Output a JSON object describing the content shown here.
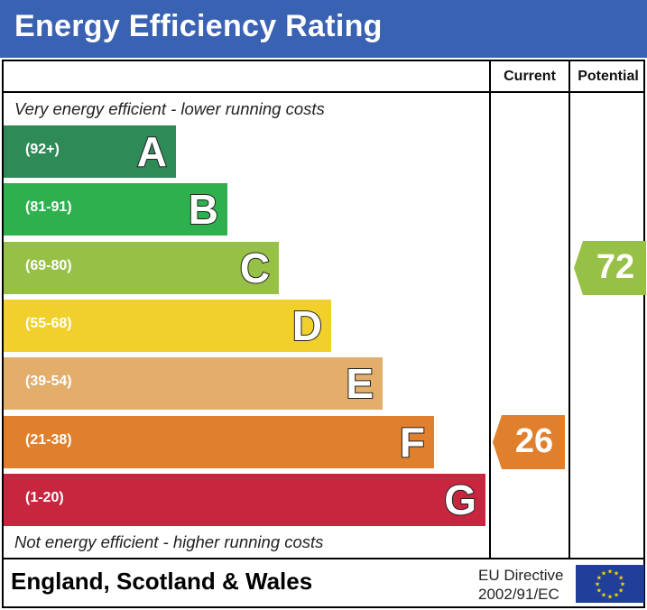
{
  "header": {
    "title": "Energy Efficiency Rating"
  },
  "columns": {
    "current": "Current",
    "potential": "Potential"
  },
  "notes": {
    "top": "Very energy efficient - lower running costs",
    "bottom": "Not energy efficient - higher running costs"
  },
  "chart_data": {
    "type": "bar",
    "bands": [
      {
        "letter": "A",
        "range": "(92+)",
        "color": "#2e8b57"
      },
      {
        "letter": "B",
        "range": "(81-91)",
        "color": "#2fb04e"
      },
      {
        "letter": "C",
        "range": "(69-80)",
        "color": "#97c146"
      },
      {
        "letter": "D",
        "range": "(55-68)",
        "color": "#f1d02c"
      },
      {
        "letter": "E",
        "range": "(39-54)",
        "color": "#e3ad6a"
      },
      {
        "letter": "F",
        "range": "(21-38)",
        "color": "#e07f2c"
      },
      {
        "letter": "G",
        "range": "(1-20)",
        "color": "#c8253f"
      }
    ],
    "current": {
      "value": "26",
      "band": "F",
      "color": "#e07f2c"
    },
    "potential": {
      "value": "72",
      "band": "C",
      "color": "#97c146"
    }
  },
  "footer": {
    "country": "England, Scotland & Wales",
    "directive_line1": "EU Directive",
    "directive_line2": "2002/91/EC"
  },
  "colors": {
    "title_bar": "#3a62b3",
    "eu_flag": "#1f3f9a",
    "eu_stars": "#ffd400"
  }
}
